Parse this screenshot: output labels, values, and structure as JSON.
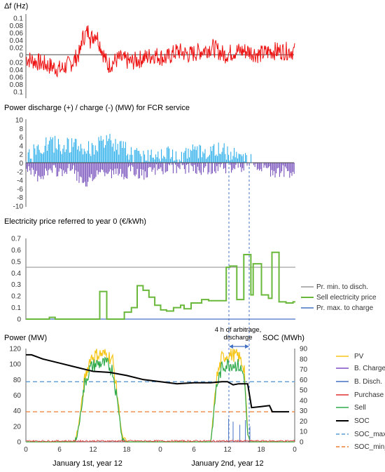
{
  "chart_data": [
    {
      "type": "line",
      "title": "Δf (Hz)",
      "ylim": [
        -0.1,
        0.1
      ],
      "yticks": [
        "0.1",
        "0.08",
        "0.06",
        "0.04",
        "0.02",
        "0",
        "0.02",
        "0.04",
        "0.06",
        "0.08",
        "0.1"
      ],
      "series": [
        {
          "color": "#ee1111",
          "note_x_hours": [
            0,
            2,
            4,
            6,
            8,
            10,
            12,
            14,
            16,
            18,
            20,
            22,
            24,
            26,
            28,
            30,
            32,
            34,
            36,
            38,
            40,
            42,
            44,
            46,
            48
          ],
          "values": [
            -0.01,
            -0.02,
            -0.03,
            -0.04,
            -0.02,
            0.02,
            0.06,
            -0.03,
            -0.01,
            -0.02,
            -0.01,
            0.0,
            -0.01,
            0.01,
            0.0,
            0.01,
            0.02,
            0.0,
            0.01,
            0.01,
            0.0,
            0.01,
            0.01,
            0.01,
            -0.02
          ]
        }
      ]
    },
    {
      "type": "line",
      "title": "Power discharge (+) / charge (-) (MW) for FCR service",
      "ylim": [
        -10,
        10
      ],
      "yticks": [
        "10",
        "8",
        "6",
        "4",
        "2",
        "0",
        "-2",
        "-4",
        "-6",
        "-8",
        "-10"
      ],
      "series": [
        {
          "color": "#1aa7e8",
          "label": "discharge",
          "x": [
            0,
            2,
            4,
            6,
            8,
            10,
            12,
            14,
            16,
            18,
            20,
            22,
            24,
            26,
            28,
            30,
            32,
            34,
            36,
            38,
            40,
            42,
            44
          ],
          "values": [
            1,
            3,
            4.5,
            4,
            4,
            3,
            4,
            5,
            3.5,
            2,
            1.5,
            2.5,
            2,
            2,
            2.5,
            2.5,
            3,
            2.5,
            2.5,
            0,
            0,
            0,
            0
          ]
        },
        {
          "color": "#6a3fb5",
          "label": "charge",
          "x": [
            0,
            2,
            4,
            6,
            8,
            10,
            12,
            14,
            16,
            18,
            20,
            22,
            24,
            26,
            28,
            30,
            32,
            34,
            36,
            38,
            40,
            42,
            44
          ],
          "values": [
            -2,
            -3,
            -2,
            -2,
            -1.5,
            -6,
            -2,
            -2.5,
            -2.5,
            -2,
            -3,
            -1.5,
            -1,
            -1.5,
            -1,
            -1.5,
            -1,
            -1,
            -1,
            0,
            -1.5,
            -2,
            -2
          ]
        }
      ]
    },
    {
      "type": "line",
      "title": "Electricity price referred to year 0 (€/kWh)",
      "ylim": [
        0,
        0.7
      ],
      "yticks": [
        "0.7",
        "0.6",
        "0.5",
        "0.4",
        "0.3",
        "0.2",
        "0.1",
        "0"
      ],
      "legend": [
        "Pr. min. to disch.",
        "Sell electricity price",
        "Pr. max. to charge"
      ],
      "series": [
        {
          "name": "Pr. min. to disch.",
          "color": "#999999",
          "x": [
            0,
            46
          ],
          "values": [
            0.45,
            0.45
          ]
        },
        {
          "name": "Sell electricity price",
          "color": "#6ab83b",
          "x": [
            0,
            4,
            4,
            5,
            5,
            12.6,
            12.6,
            13.8,
            13.8,
            16.8,
            16.8,
            18,
            18,
            19,
            19,
            20,
            20,
            21,
            21,
            22,
            22,
            23,
            23,
            24,
            24,
            25.2,
            25.2,
            26.4,
            26.4,
            27,
            27,
            28.2,
            28.2,
            30,
            30,
            31.2,
            31.2,
            34.2,
            34.2,
            34.8,
            34.8,
            36,
            36,
            37.2,
            37.2,
            38.4,
            38.4,
            38.8,
            38.8,
            40.2,
            40.2,
            41.4,
            41.4,
            42,
            42,
            43.2,
            43.2,
            44.4,
            44.4,
            45.6,
            45.6,
            46
          ],
          "values": [
            0,
            0,
            0.015,
            0.015,
            0,
            0,
            0.24,
            0.24,
            0,
            0,
            0.06,
            0.06,
            0.1,
            0.1,
            0.29,
            0.29,
            0.25,
            0.25,
            0.19,
            0.19,
            0.12,
            0.12,
            0.08,
            0.08,
            0.07,
            0.07,
            0.1,
            0.1,
            0.12,
            0.12,
            0.09,
            0.09,
            0.14,
            0.14,
            0.17,
            0.17,
            0.16,
            0.16,
            0.45,
            0.45,
            0.46,
            0.46,
            0.17,
            0.17,
            0.56,
            0.56,
            0.21,
            0.21,
            0.48,
            0.48,
            0.21,
            0.21,
            0.18,
            0.18,
            0.58,
            0.58,
            0.15,
            0.15,
            0.14,
            0.14,
            0.15,
            0.15
          ]
        },
        {
          "name": "Pr. max. to charge",
          "color": "#4472c4",
          "x": [
            0,
            46
          ],
          "values": [
            0,
            0
          ]
        }
      ]
    },
    {
      "type": "line",
      "title": "Power (MW)",
      "secondary_title": "SOC (MWh)",
      "ylim": [
        0,
        120
      ],
      "yticks": [
        "120",
        "100",
        "80",
        "60",
        "40",
        "20",
        "0"
      ],
      "y2lim": [
        0,
        90
      ],
      "y2ticks": [
        "90",
        "80",
        "70",
        "60",
        "50",
        "40",
        "30",
        "20",
        "10",
        "0"
      ],
      "xticks": [
        "0",
        "6",
        "12",
        "18",
        "0",
        "6",
        "12",
        "18",
        "0"
      ],
      "xlabels": [
        "January 1st, year 12",
        "January 2nd, year 12"
      ],
      "annotation": [
        "4 h of arbitrage,",
        "discharge"
      ],
      "legend": [
        "PV",
        "B. Charge",
        "B. Disch.",
        "Purchase",
        "Sell",
        "SOC",
        "SOC_max_arb",
        "SOC_min_arb"
      ],
      "series": [
        {
          "name": "PV",
          "color": "#f5c518",
          "x": [
            0,
            8.8,
            9.5,
            10.5,
            11.5,
            12.5,
            13.5,
            14.5,
            15.5,
            16.5,
            17.2,
            18,
            33,
            33.3,
            34,
            35,
            36,
            37,
            38,
            39,
            39.6,
            40,
            48
          ],
          "values": [
            0,
            0,
            25,
            80,
            108,
            112,
            113,
            112,
            105,
            50,
            5,
            0,
            0,
            20,
            80,
            108,
            112,
            112,
            110,
            95,
            10,
            0,
            0
          ]
        },
        {
          "name": "Sell",
          "color": "#2eaa4a",
          "x": [
            0,
            8.8,
            9.5,
            10.5,
            11.5,
            12.5,
            13.5,
            14.5,
            15.5,
            16.5,
            17.2,
            18,
            33,
            33.3,
            34,
            35,
            36,
            37,
            38,
            39,
            39.6,
            40,
            48
          ],
          "values": [
            0,
            0,
            22,
            75,
            95,
            100,
            101,
            100,
            92,
            45,
            4,
            0,
            0,
            18,
            70,
            96,
            100,
            100,
            98,
            85,
            8,
            0,
            0
          ]
        },
        {
          "name": "SOC",
          "color": "#000000",
          "axis": "right",
          "x": [
            0,
            1,
            3,
            6,
            9,
            12,
            15,
            18,
            21,
            24,
            27,
            30,
            33,
            35,
            36,
            37,
            38,
            39.6,
            40.3,
            42,
            43.5,
            44,
            47
          ],
          "values": [
            84,
            84,
            80,
            76,
            72,
            68,
            67,
            64,
            60,
            58,
            56,
            57,
            57,
            58,
            58,
            55,
            56,
            56,
            33,
            34,
            35,
            29,
            29
          ]
        },
        {
          "name": "SOC_max_arb",
          "color": "#5b9bd5",
          "axis": "right",
          "x": [
            0,
            48
          ],
          "values": [
            58,
            58
          ]
        },
        {
          "name": "SOC_min_arb",
          "color": "#ed7d31",
          "axis": "right",
          "x": [
            0,
            48
          ],
          "values": [
            29,
            29
          ]
        }
      ]
    }
  ]
}
